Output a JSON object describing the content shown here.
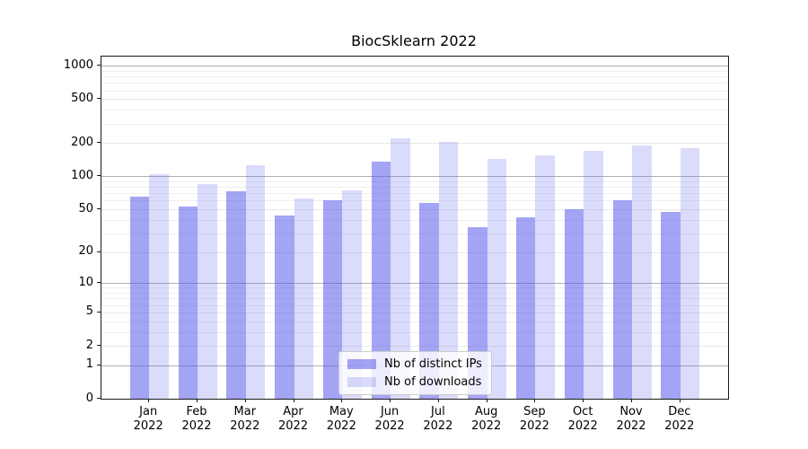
{
  "title": "BiocSklearn 2022",
  "chart_data": {
    "type": "bar",
    "scale": "log10(1+x)",
    "title": "BiocSklearn 2022",
    "xlabel": "",
    "ylabel": "",
    "categories": [
      "Jan\n2022",
      "Feb\n2022",
      "Mar\n2022",
      "Apr\n2022",
      "May\n2022",
      "Jun\n2022",
      "Jul\n2022",
      "Aug\n2022",
      "Sep\n2022",
      "Oct\n2022",
      "Nov\n2022",
      "Dec\n2022"
    ],
    "month_labels": [
      {
        "month": "Jan",
        "year": "2022"
      },
      {
        "month": "Feb",
        "year": "2022"
      },
      {
        "month": "Mar",
        "year": "2022"
      },
      {
        "month": "Apr",
        "year": "2022"
      },
      {
        "month": "May",
        "year": "2022"
      },
      {
        "month": "Jun",
        "year": "2022"
      },
      {
        "month": "Jul",
        "year": "2022"
      },
      {
        "month": "Aug",
        "year": "2022"
      },
      {
        "month": "Sep",
        "year": "2022"
      },
      {
        "month": "Oct",
        "year": "2022"
      },
      {
        "month": "Nov",
        "year": "2022"
      },
      {
        "month": "Dec",
        "year": "2022"
      }
    ],
    "series": [
      {
        "name": "Nb of distinct IPs",
        "color": "rgba(90,90,235,0.55)",
        "values": [
          65,
          53,
          73,
          44,
          61,
          135,
          57,
          34,
          42,
          50,
          60,
          47
        ]
      },
      {
        "name": "Nb of downloads",
        "color": "rgba(90,90,235,0.22)",
        "values": [
          105,
          85,
          127,
          63,
          74,
          220,
          206,
          145,
          155,
          171,
          190,
          180
        ]
      }
    ],
    "y_ticks": [
      0,
      1,
      2,
      5,
      10,
      20,
      50,
      100,
      200,
      500,
      1000
    ],
    "y_major_gridlines": [
      1,
      10,
      100,
      1000
    ],
    "ylim": [
      0,
      1210
    ],
    "grid": true,
    "legend_position": "lower center"
  }
}
